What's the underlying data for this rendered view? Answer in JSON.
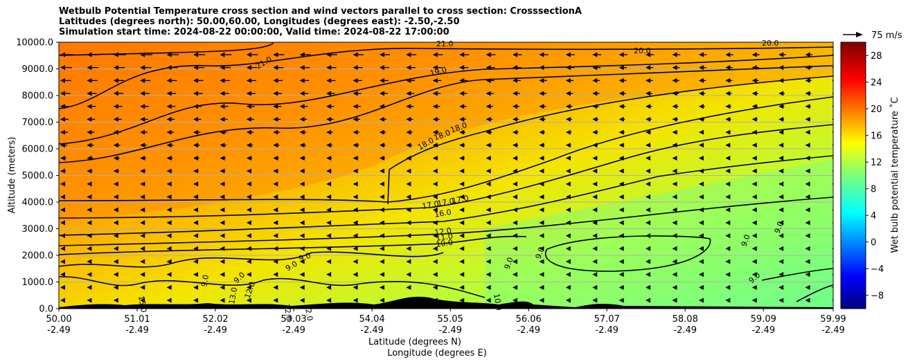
{
  "chart_data": {
    "type": "heatmap",
    "title_lines": [
      "Wetbulb Potential Temperature cross section and wind vectors parallel to cross section: CrosssectionA",
      "Latitudes (degrees north): 50.00,60.00, Longitudes (degrees east): -2.50,-2.50",
      "Simulation start time: 2024-08-22 00:00:00, Valid time: 2024-08-22 17:00:00"
    ],
    "ylabel": "Altitude (meters)",
    "xlabel_lines": [
      "Latitude (degrees N)",
      "Longitude (degrees E)"
    ],
    "ylim": [
      0,
      10000
    ],
    "xlim": [
      50.0,
      59.99
    ],
    "y_ticks": [
      "0.0",
      "1000.0",
      "2000.0",
      "3000.0",
      "4000.0",
      "5000.0",
      "6000.0",
      "7000.0",
      "8000.0",
      "9000.0",
      "10000.0"
    ],
    "x_ticks": [
      {
        "lat": "50.00",
        "lon": "-2.49"
      },
      {
        "lat": "51.01",
        "lon": "-2.49"
      },
      {
        "lat": "52.02",
        "lon": "-2.49"
      },
      {
        "lat": "53.03",
        "lon": "-2.49"
      },
      {
        "lat": "54.04",
        "lon": "-2.49"
      },
      {
        "lat": "55.05",
        "lon": "-2.49"
      },
      {
        "lat": "56.06",
        "lon": "-2.49"
      },
      {
        "lat": "57.07",
        "lon": "-2.49"
      },
      {
        "lat": "58.08",
        "lon": "-2.49"
      },
      {
        "lat": "59.09",
        "lon": "-2.49"
      },
      {
        "lat": "59.99",
        "lon": "-2.49"
      }
    ],
    "colorbar": {
      "label": "Wet bulb potential temperature $^\\circ$C",
      "label_display": "Wet bulb potential temperature ˚C",
      "range": [
        -10,
        30
      ],
      "ticks": [
        "−8",
        "−4",
        "0",
        "4",
        "8",
        "12",
        "16",
        "20",
        "24",
        "28"
      ],
      "colormap": "jet"
    },
    "wind_key": "75 m/s",
    "contour_labels": [
      "21.0",
      "20.0",
      "19.0",
      "18.0",
      "17.0",
      "16.0",
      "12.0",
      "11.0",
      "10.0",
      "9.0",
      "13.0",
      "15.0"
    ],
    "field_summary": {
      "upper_left_value": 21,
      "upper_right_value": 19,
      "mid_left_value": 18,
      "lower_right_value": 9,
      "surface_value": 12
    },
    "grid": true
  }
}
